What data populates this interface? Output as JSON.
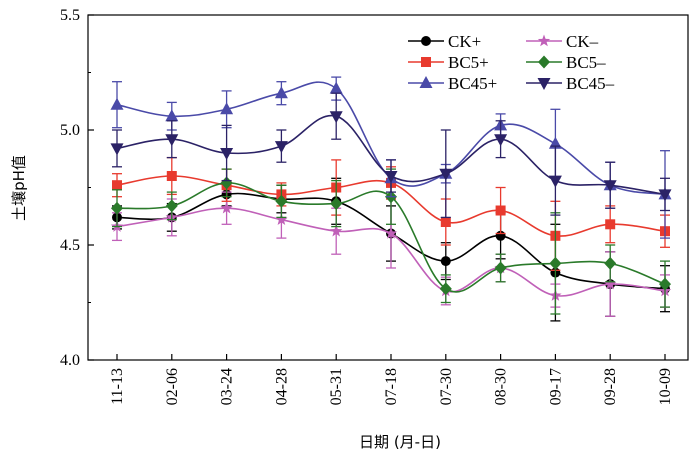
{
  "chart_data": {
    "type": "line",
    "xlabel": "日期 (月-日)",
    "ylabel": "土壤pH值",
    "ylim": [
      4.0,
      5.5
    ],
    "yticks": [
      "4.0",
      "4.5",
      "5.0",
      "5.5"
    ],
    "categories": [
      "11-13",
      "02-06",
      "03-24",
      "04-28",
      "05-31",
      "07-18",
      "07-30",
      "08-30",
      "09-17",
      "09-28",
      "10-09"
    ],
    "grid": false,
    "legend_position": "top-right",
    "series": [
      {
        "name": "CK+",
        "color": "#000000",
        "marker": "circle",
        "values": [
          4.62,
          4.62,
          4.72,
          4.7,
          4.69,
          4.55,
          4.43,
          4.54,
          4.38,
          4.33,
          4.31
        ],
        "errors": [
          0.05,
          0.06,
          0.05,
          0.06,
          0.1,
          0.12,
          0.08,
          0.1,
          0.21,
          0.14,
          0.1
        ]
      },
      {
        "name": "CK–",
        "color": "#c060b8",
        "marker": "star",
        "values": [
          4.58,
          4.62,
          4.66,
          4.61,
          4.56,
          4.55,
          4.3,
          4.4,
          4.28,
          4.33,
          4.3
        ],
        "errors": [
          0.06,
          0.08,
          0.07,
          0.08,
          0.1,
          0.15,
          0.06,
          0.06,
          0.05,
          0.14,
          0.07
        ]
      },
      {
        "name": "BC5+",
        "color": "#e83a2e",
        "marker": "square",
        "values": [
          4.76,
          4.8,
          4.76,
          4.72,
          4.75,
          4.77,
          4.6,
          4.65,
          4.54,
          4.59,
          4.56
        ],
        "errors": [
          0.05,
          0.08,
          0.07,
          0.05,
          0.12,
          0.07,
          0.1,
          0.1,
          0.15,
          0.08,
          0.07
        ]
      },
      {
        "name": "BC5–",
        "color": "#2a7a2a",
        "marker": "diamond",
        "values": [
          4.66,
          4.67,
          4.77,
          4.69,
          4.68,
          4.71,
          4.31,
          4.4,
          4.42,
          4.42,
          4.33
        ],
        "errors": [
          0.08,
          0.06,
          0.06,
          0.07,
          0.1,
          0.12,
          0.06,
          0.06,
          0.22,
          0.08,
          0.1
        ]
      },
      {
        "name": "BC45+",
        "color": "#4a4aa8",
        "marker": "triangle-up",
        "values": [
          5.11,
          5.06,
          5.09,
          5.16,
          5.18,
          4.79,
          4.81,
          5.02,
          4.94,
          4.76,
          4.72
        ],
        "errors": [
          0.1,
          0.06,
          0.08,
          0.05,
          0.05,
          0.08,
          0.04,
          0.05,
          0.15,
          0.1,
          0.19
        ]
      },
      {
        "name": "BC45–",
        "color": "#2b2266",
        "marker": "triangle-down",
        "values": [
          4.92,
          4.96,
          4.9,
          4.93,
          5.06,
          4.8,
          4.81,
          4.96,
          4.78,
          4.76,
          4.72
        ],
        "errors": [
          0.08,
          0.08,
          0.12,
          0.07,
          0.1,
          0.07,
          0.19,
          0.08,
          0.15,
          0.1,
          0.07
        ]
      }
    ]
  }
}
